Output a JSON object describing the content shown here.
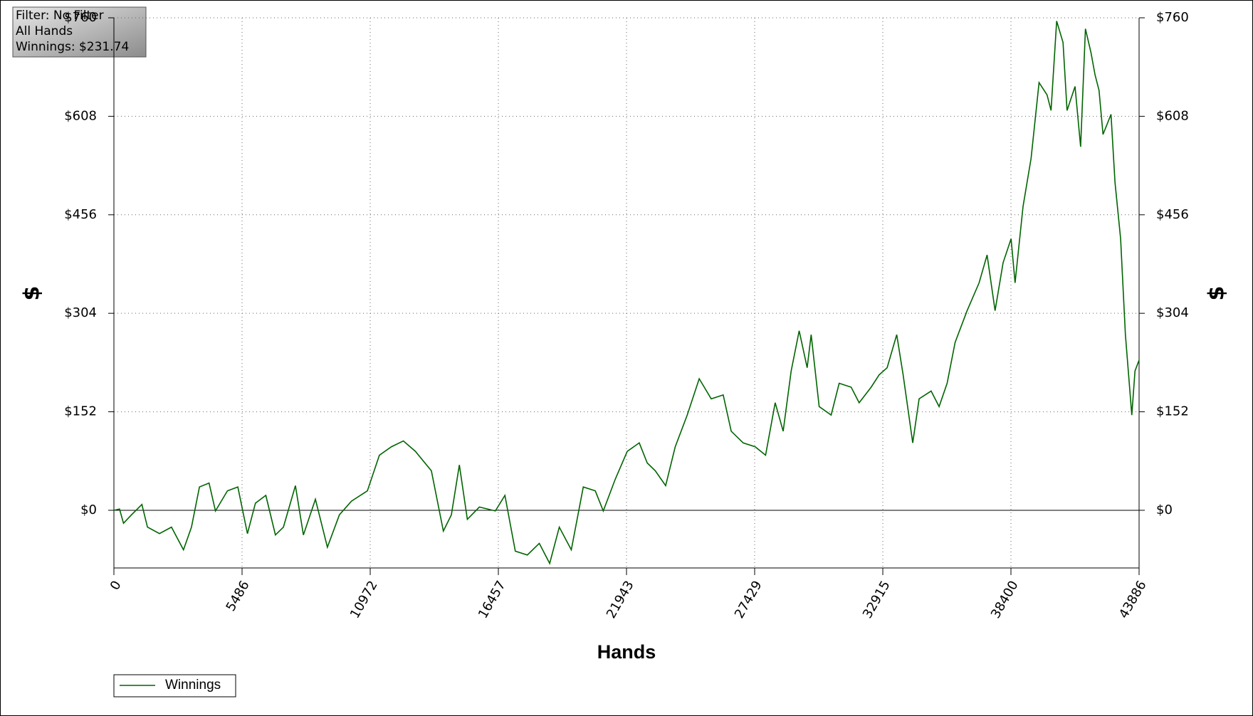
{
  "chart_data": {
    "type": "line",
    "info_lines": [
      "Filter: No Filter",
      "All Hands",
      "Winnings: $231.74"
    ],
    "xlabel": "Hands",
    "ylabel": "$",
    "y2label": "$",
    "xlim": [
      0,
      43886
    ],
    "xticks": [
      0,
      5486,
      10972,
      16457,
      21943,
      27429,
      32915,
      38400,
      43886
    ],
    "ylim": [
      -89,
      760
    ],
    "yticks": [
      {
        "value": 0,
        "label": "$0"
      },
      {
        "value": 152,
        "label": "$152"
      },
      {
        "value": 304,
        "label": "$304"
      },
      {
        "value": 456,
        "label": "$456"
      },
      {
        "value": 608,
        "label": "$608"
      },
      {
        "value": 760,
        "label": "$760"
      }
    ],
    "y2lim": [
      -89,
      760
    ],
    "y2ticks": [
      {
        "value": 0,
        "label": "$0"
      },
      {
        "value": 152,
        "label": "$152"
      },
      {
        "value": 304,
        "label": "$304"
      },
      {
        "value": 456,
        "label": "$456"
      },
      {
        "value": 608,
        "label": "$608"
      },
      {
        "value": 760,
        "label": "$760"
      }
    ],
    "grid": true,
    "legend": "bottom-left",
    "x": [
      0,
      240,
      411,
      753,
      1198,
      1437,
      1951,
      2464,
      2978,
      3320,
      3662,
      4073,
      4347,
      4860,
      5305,
      5716,
      6058,
      6503,
      6914,
      7256,
      7770,
      8112,
      8626,
      9139,
      9653,
      10166,
      10851,
      11364,
      11878,
      12391,
      12905,
      13590,
      14103,
      14446,
      14788,
      15130,
      15644,
      16328,
      16738,
      17183,
      17697,
      18210,
      18655,
      19066,
      19580,
      20093,
      20607,
      20949,
      21462,
      21976,
      22489,
      22831,
      23174,
      23619,
      24029,
      24543,
      25056,
      25570,
      26083,
      26426,
      26939,
      27452,
      27897,
      28308,
      28650,
      28992,
      29335,
      29677,
      29848,
      30191,
      30704,
      31047,
      31560,
      31902,
      32416,
      32758,
      33100,
      33511,
      33785,
      34196,
      34469,
      34983,
      35325,
      35668,
      36010,
      36523,
      37037,
      37379,
      37721,
      38064,
      38406,
      38577,
      38919,
      39262,
      39604,
      39946,
      40117,
      40357,
      40630,
      40802,
      41144,
      41383,
      41589,
      41828,
      42000,
      42171,
      42342,
      42684,
      42855,
      43095,
      43300,
      43574,
      43711,
      43886
    ],
    "series": [
      {
        "name": "Winnings",
        "color": "#006400",
        "values": [
          0,
          2,
          -20,
          -7,
          9,
          -26,
          -36,
          -26,
          -61,
          -26,
          36,
          42,
          -1,
          30,
          36,
          -36,
          11,
          23,
          -38,
          -26,
          38,
          -38,
          17,
          -57,
          -7,
          14,
          30,
          85,
          98,
          107,
          91,
          61,
          -32,
          -7,
          70,
          -14,
          5,
          -1,
          23,
          -63,
          -69,
          -51,
          -82,
          -26,
          -61,
          36,
          30,
          -1,
          48,
          91,
          104,
          73,
          61,
          38,
          98,
          147,
          203,
          172,
          178,
          122,
          104,
          98,
          85,
          166,
          122,
          215,
          277,
          220,
          271,
          160,
          147,
          196,
          190,
          166,
          190,
          209,
          220,
          271,
          209,
          104,
          172,
          184,
          160,
          196,
          259,
          308,
          351,
          394,
          308,
          382,
          419,
          351,
          469,
          543,
          660,
          641,
          617,
          755,
          722,
          617,
          654,
          561,
          743,
          706,
          672,
          648,
          580,
          611,
          506,
          419,
          271,
          147,
          215,
          231.74
        ]
      }
    ]
  }
}
